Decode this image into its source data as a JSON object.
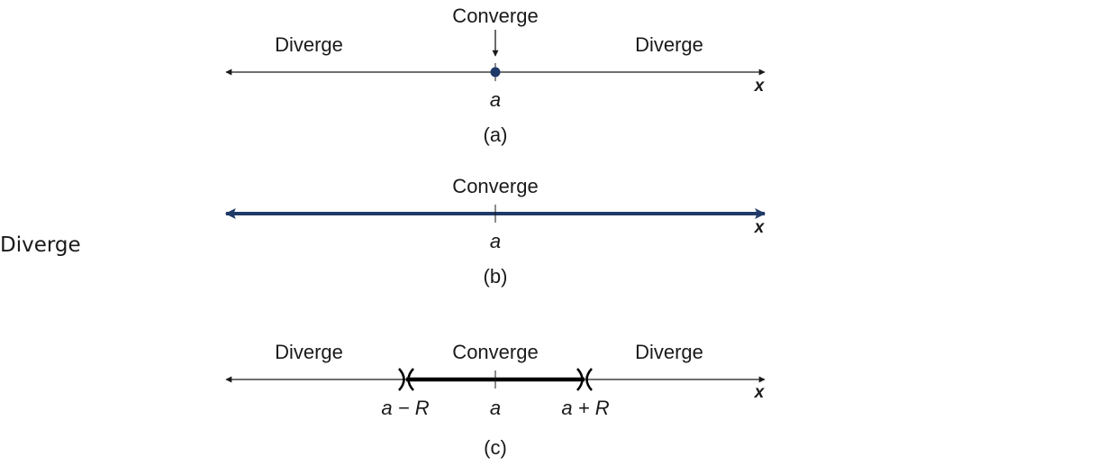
{
  "stray_label": "Diverge",
  "panels": [
    {
      "caption": "(a)",
      "center_label": "a",
      "axis_var": "x",
      "left_label": "Diverge",
      "right_label": "Diverge",
      "center_top_label": "Converge",
      "interval": "single point x = a"
    },
    {
      "caption": "(b)",
      "center_label": "a",
      "axis_var": "x",
      "center_top_label": "Converge",
      "interval": "all real numbers"
    },
    {
      "caption": "(c)",
      "center_label": "a",
      "axis_var": "x",
      "left_label": "Diverge",
      "right_label": "Diverge",
      "center_top_label": "Converge",
      "left_end_label": "a − R",
      "right_end_label": "a + R",
      "interval": "open interval (a − R, a + R)"
    }
  ],
  "colors": {
    "axis": "#1a1a1a",
    "highlight": "#1f3a68",
    "bold": "#000000"
  }
}
